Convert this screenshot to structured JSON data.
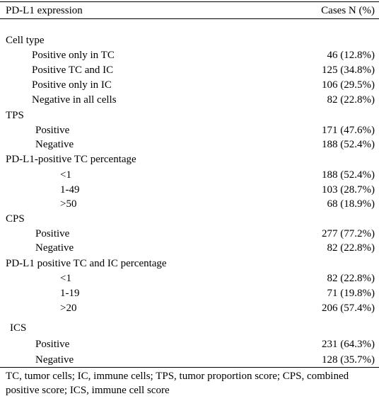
{
  "header": {
    "label": "PD-L1 expression",
    "value": "Cases N (%)"
  },
  "sections": [
    {
      "label": "Cell type",
      "rows": [
        {
          "label": "Positive only in TC",
          "value": "46 (12.8%)"
        },
        {
          "label": "Positive TC and IC",
          "value": "125 (34.8%)"
        },
        {
          "label": "Positive only in IC",
          "value": "106 (29.5%)"
        },
        {
          "label": "Negative in all cells",
          "value": "82 (22.8%)"
        }
      ]
    },
    {
      "label": "TPS",
      "rows": [
        {
          "label": "Positive",
          "value": "171 (47.6%)"
        },
        {
          "label": "Negative",
          "value": "188 (52.4%)"
        }
      ]
    },
    {
      "label": "PD-L1-positive TC percentage",
      "rows": [
        {
          "label": "<1",
          "value": "188 (52.4%)"
        },
        {
          "label": "1-49",
          "value": "103 (28.7%)"
        },
        {
          "label": ">50",
          "value": "68 (18.9%)"
        }
      ]
    },
    {
      "label": "CPS",
      "rows": [
        {
          "label": "Positive",
          "value": "277 (77.2%)"
        },
        {
          "label": "Negative",
          "value": "82 (22.8%)"
        }
      ]
    },
    {
      "label": "PD-L1 positive TC and IC percentage",
      "rows": [
        {
          "label": "<1",
          "value": "82 (22.8%)"
        },
        {
          "label": "1-19",
          "value": "71 (19.8%)"
        },
        {
          "label": ">20",
          "value": "206 (57.4%)"
        }
      ]
    },
    {
      "label": "ICS",
      "rows": [
        {
          "label": "Positive",
          "value": "231 (64.3%)"
        },
        {
          "label": "Negative",
          "value": "128 (35.7%)"
        }
      ]
    }
  ],
  "footnote": "TC, tumor cells; IC, immune cells; TPS, tumor proportion score; CPS, combined positive score; ICS, immune cell score"
}
